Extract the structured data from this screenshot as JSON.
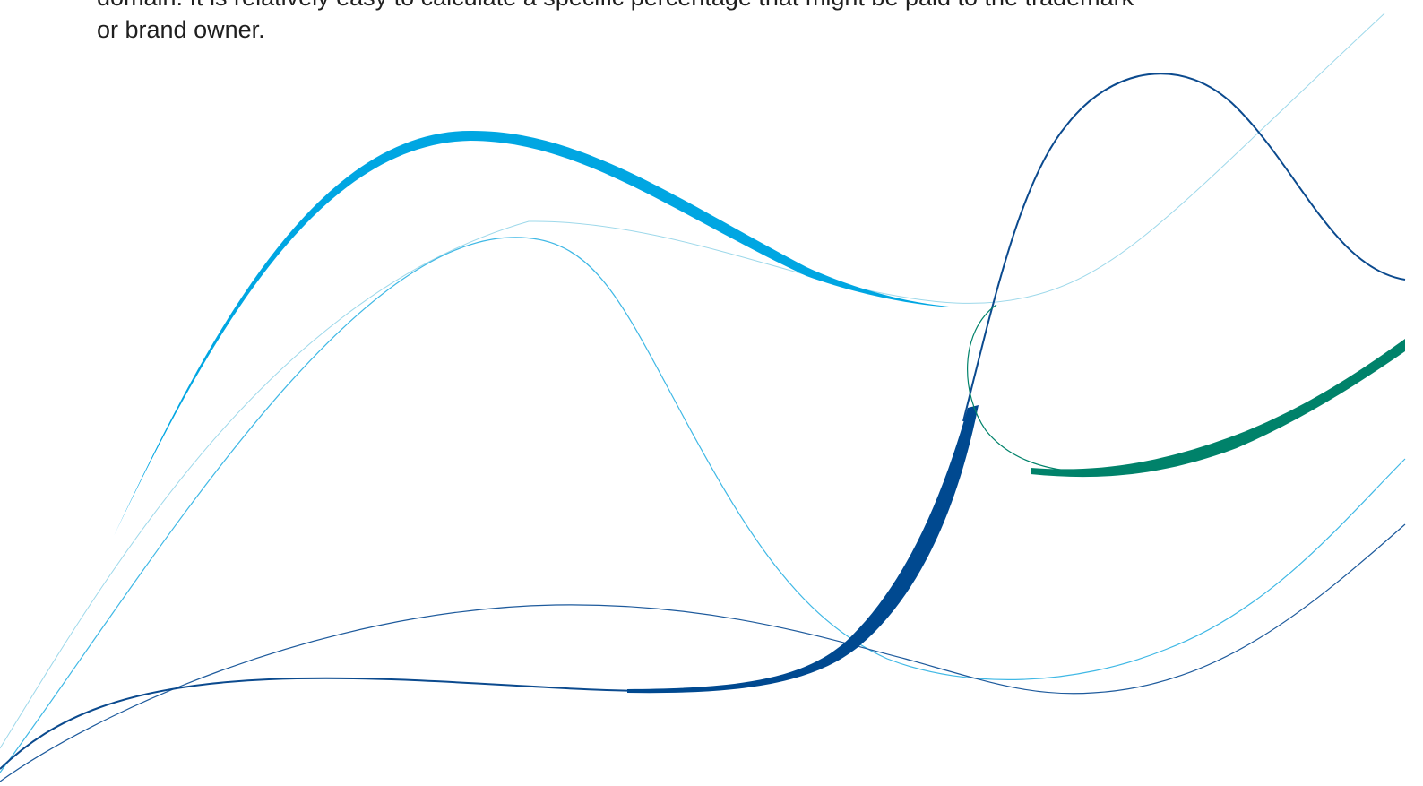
{
  "paragraph": {
    "lines": [
      "domain. It is relatively easy to calculate a specific percentage that might be paid to the trademark",
      "or brand owner."
    ]
  }
}
